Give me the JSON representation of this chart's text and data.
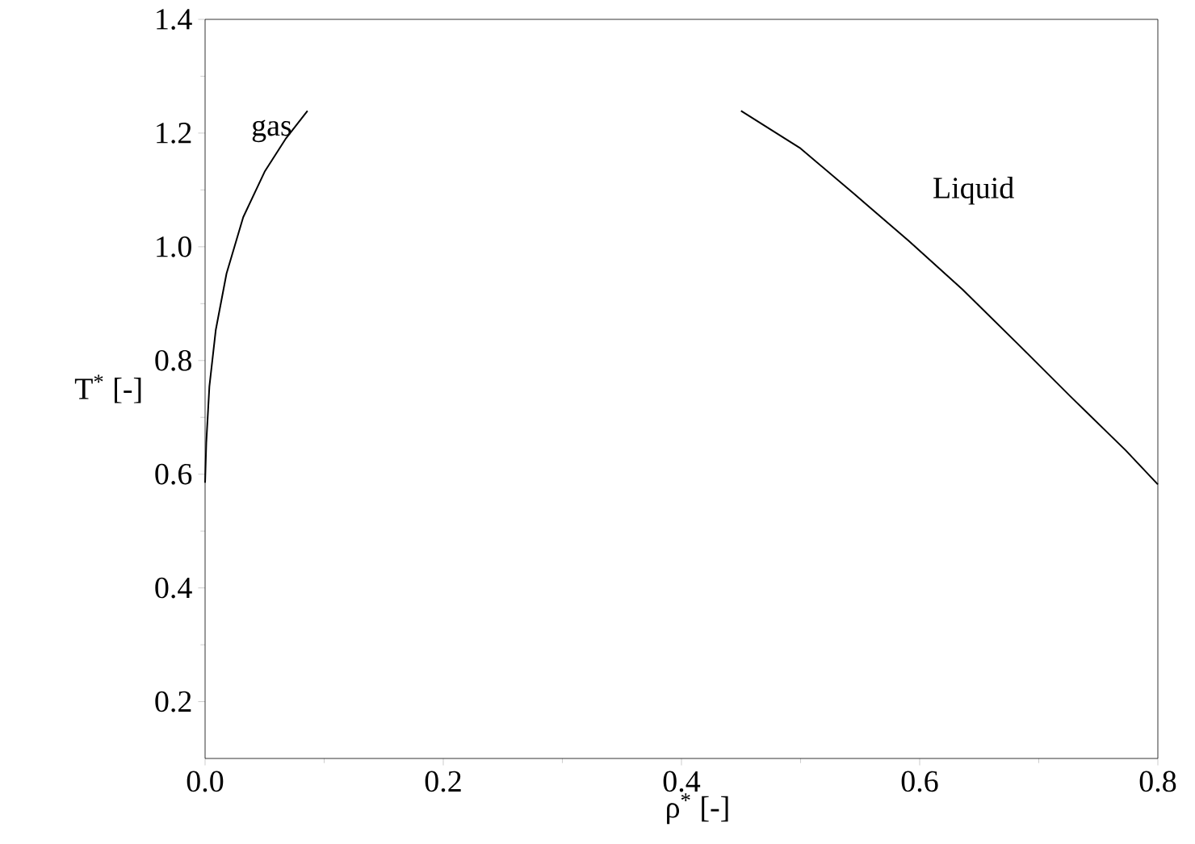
{
  "chart_data": {
    "type": "line",
    "xlabel": "ρ$^{*}$ [-]",
    "ylabel": "T$^{*}$ [-]",
    "xlim": [
      0,
      0.8
    ],
    "ylim": [
      0.1,
      1.4
    ],
    "xticks": [
      {
        "value": 0,
        "label": "0.0"
      },
      {
        "value": 0.2,
        "label": "0.2"
      },
      {
        "value": 0.4,
        "label": "0.4"
      },
      {
        "value": 0.6,
        "label": "0.6"
      },
      {
        "value": 0.8,
        "label": "0.8"
      }
    ],
    "yticks": [
      {
        "value": 0.2,
        "label": "0.2"
      },
      {
        "value": 0.4,
        "label": "0.4"
      },
      {
        "value": 0.6,
        "label": "0.6"
      },
      {
        "value": 0.8,
        "label": "0.8"
      },
      {
        "value": 1.0,
        "label": "1.0"
      },
      {
        "value": 1.2,
        "label": "1.2"
      },
      {
        "value": 1.4,
        "label": "1.4"
      }
    ],
    "grid": false,
    "marker": "none",
    "line_style": "solid",
    "series": [
      {
        "name": "gas",
        "color": "#000000",
        "x": [
          0,
          0.001,
          0.0036,
          0.009,
          0.018,
          0.032,
          0.05,
          0.068,
          0.086
        ],
        "values": [
          0.585,
          0.655,
          0.754,
          0.854,
          0.953,
          1.052,
          1.132,
          1.191,
          1.239
        ]
      },
      {
        "name": "Liquid",
        "color": "#000000",
        "x": [
          0.45,
          0.5,
          0.545,
          0.591,
          0.636,
          0.682,
          0.727,
          0.773,
          0.8
        ],
        "values": [
          1.239,
          1.173,
          1.093,
          1.01,
          0.925,
          0.83,
          0.736,
          0.642,
          0.582
        ]
      }
    ]
  }
}
